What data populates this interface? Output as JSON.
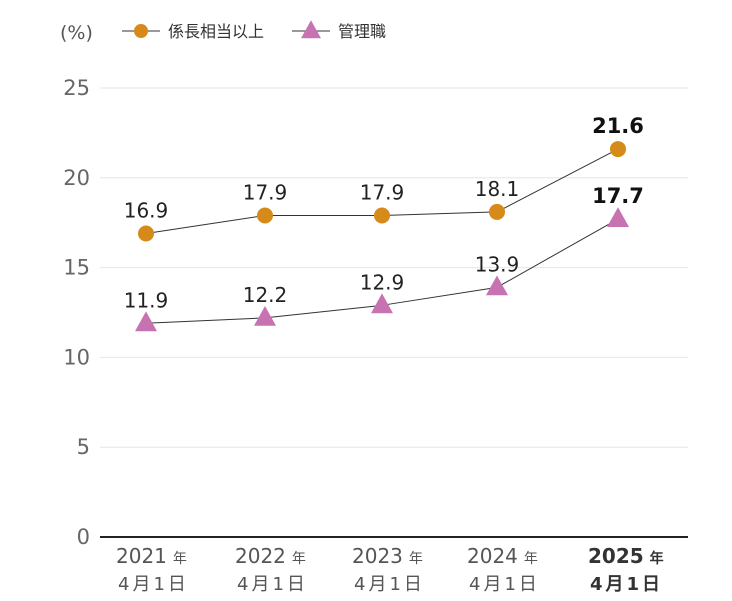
{
  "chart_data": {
    "type": "line",
    "unit_label": "(%)",
    "categories": [
      {
        "year": "2021",
        "suffix": "年",
        "date": "4月1日"
      },
      {
        "year": "2022",
        "suffix": "年",
        "date": "4月1日"
      },
      {
        "year": "2023",
        "suffix": "年",
        "date": "4月1日"
      },
      {
        "year": "2024",
        "suffix": "年",
        "date": "4月1日"
      },
      {
        "year": "2025",
        "suffix": "年",
        "date": "4月1日"
      }
    ],
    "highlight_index": 4,
    "series": [
      {
        "name": "係長相当以上",
        "marker": "circle",
        "color": "#d68a1a",
        "values": [
          16.9,
          17.9,
          17.9,
          18.1,
          21.6
        ],
        "labels": [
          "16.9",
          "17.9",
          "17.9",
          "18.1",
          "21.6"
        ]
      },
      {
        "name": "管理職",
        "marker": "triangle",
        "color": "#c873b1",
        "values": [
          11.9,
          12.2,
          12.9,
          13.9,
          17.7
        ],
        "labels": [
          "11.9",
          "12.2",
          "12.9",
          "13.9",
          "17.7"
        ]
      }
    ],
    "yticks": [
      "0",
      "5",
      "10",
      "15",
      "20",
      "25"
    ],
    "ylim": [
      0,
      25
    ],
    "grid": true,
    "legend": "top-left"
  }
}
